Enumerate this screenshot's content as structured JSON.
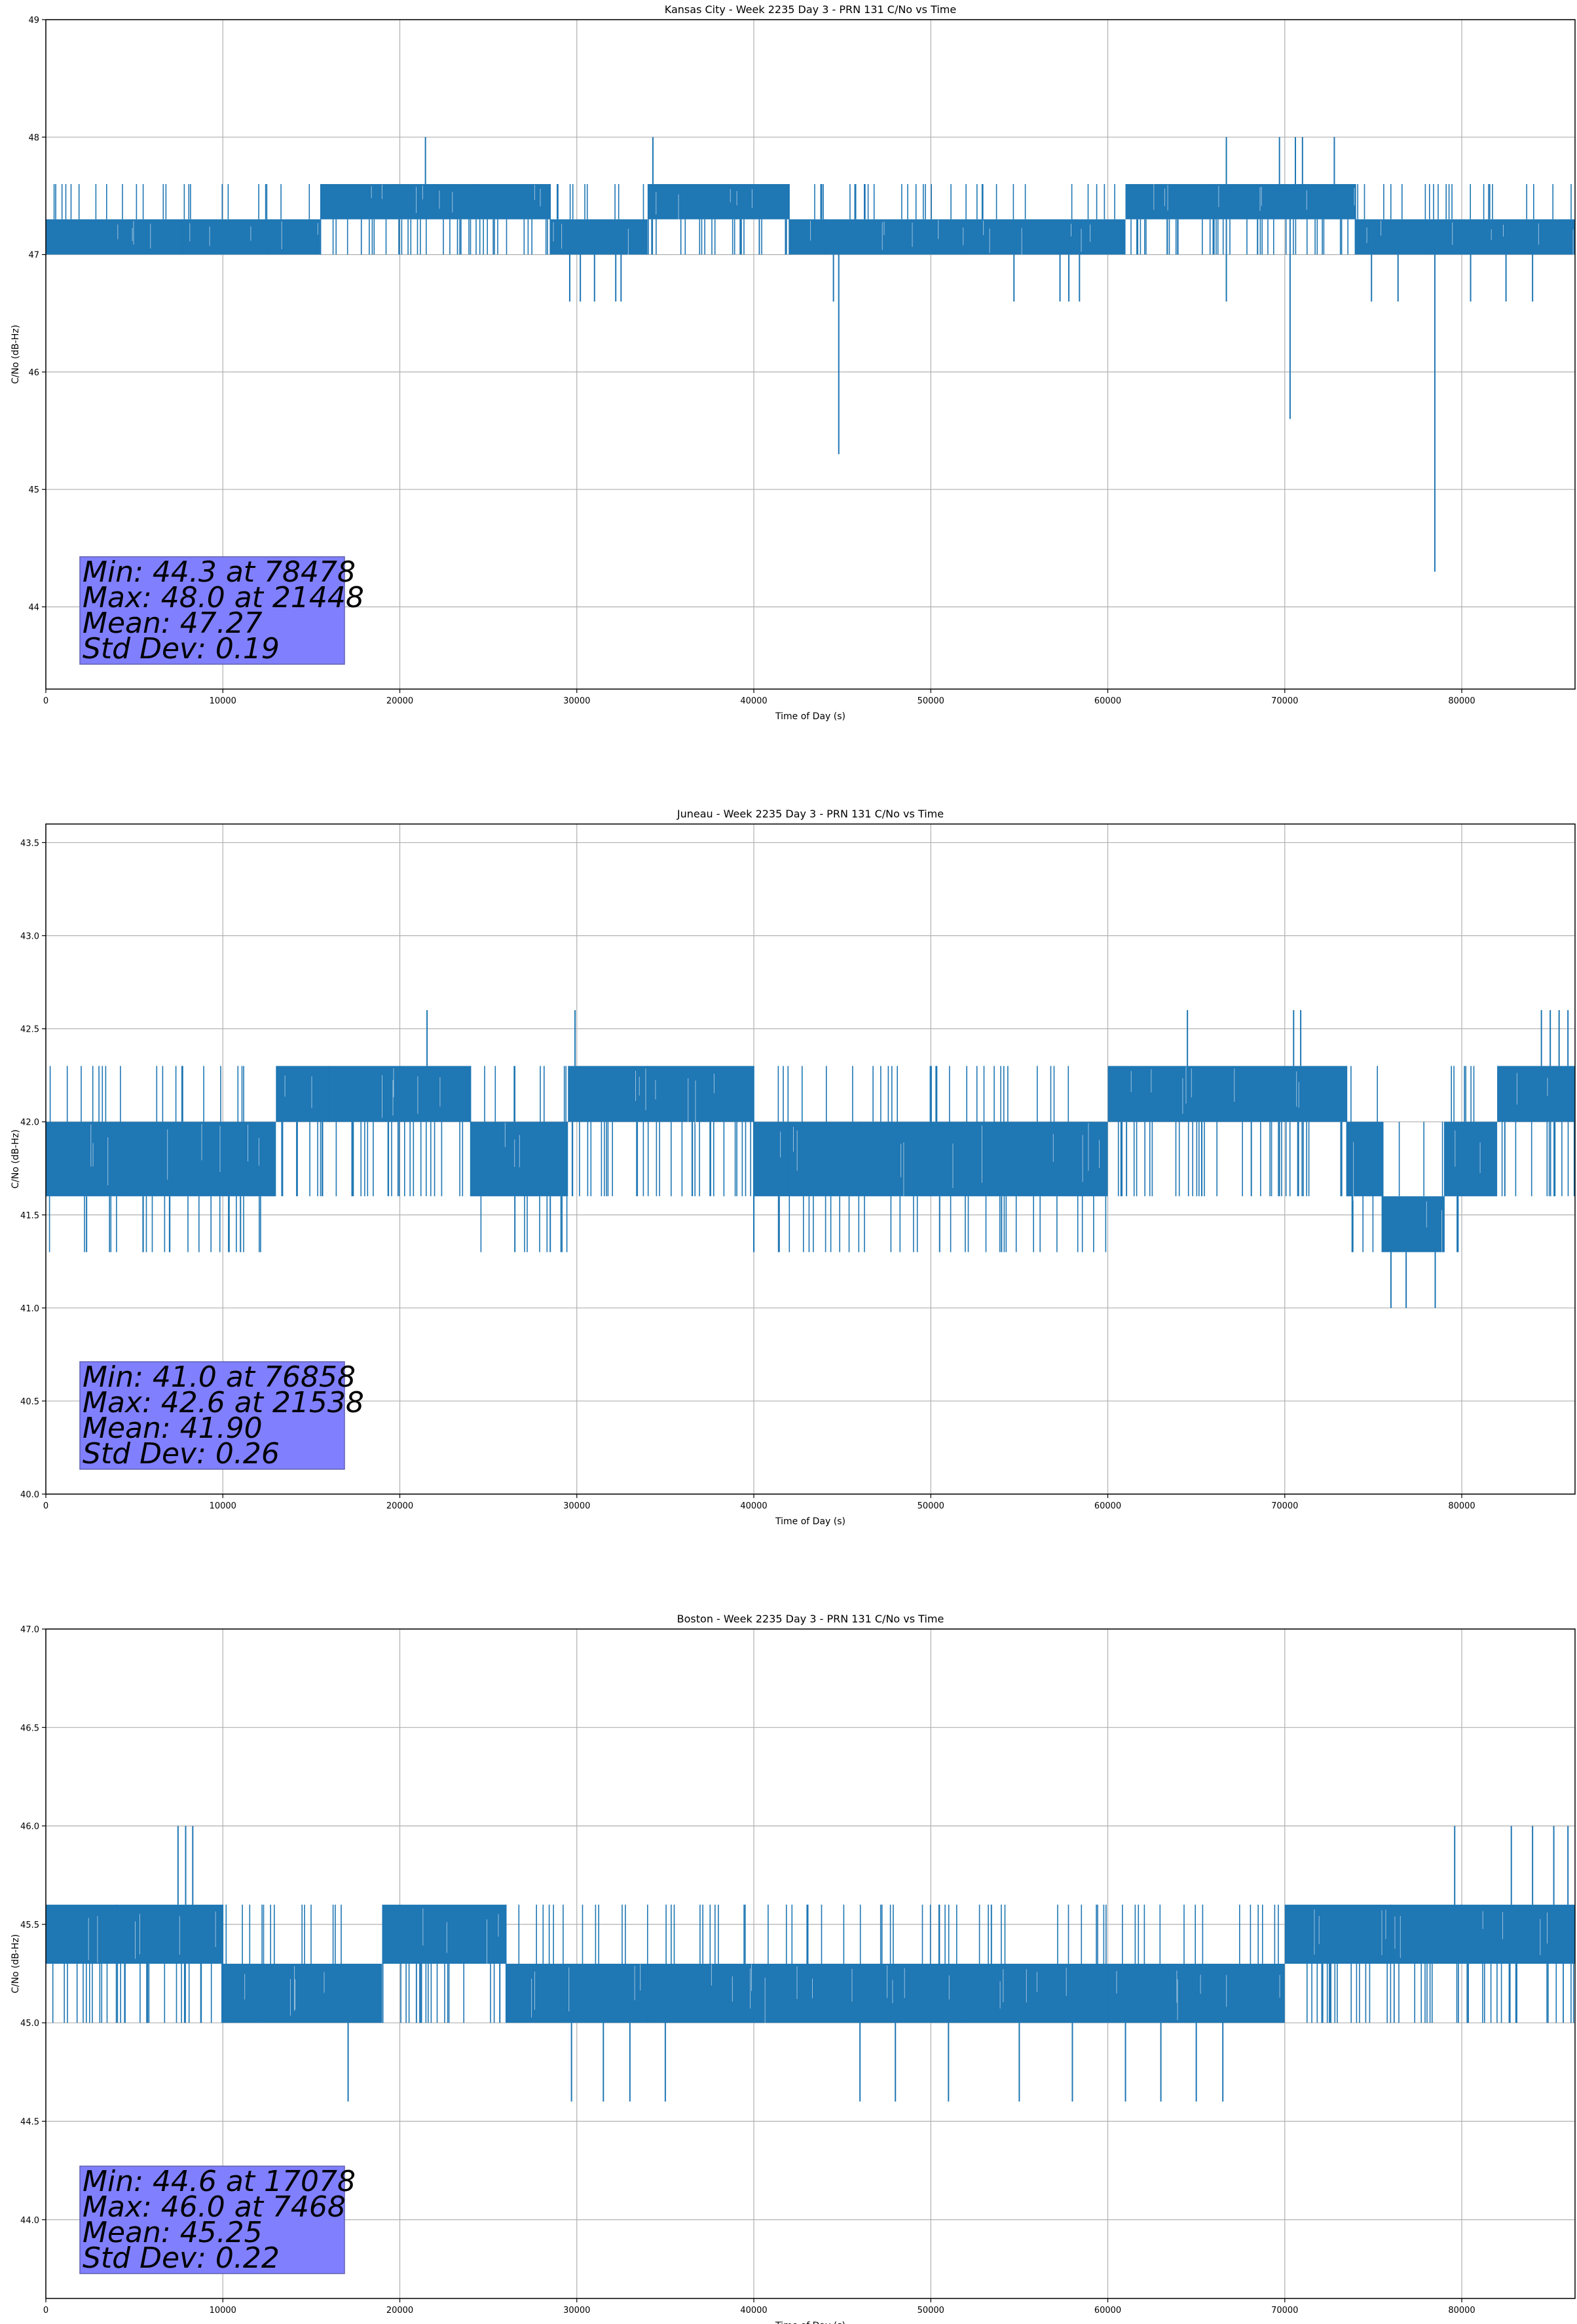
{
  "colors": {
    "line": "#1f77b4",
    "grid": "#b0b0b0",
    "stats_box_fill": "#8080ff",
    "stats_box_stroke": "#6060b0"
  },
  "chart_data": [
    {
      "type": "line",
      "title": "Kansas City - Week 2235 Day 3 - PRN 131 C/No vs Time",
      "xlabel": "Time of Day (s)",
      "ylabel": "C/No (dB-Hz)",
      "xlim": [
        0,
        86400
      ],
      "ylim": [
        43.3,
        49.0
      ],
      "xticks": [
        0,
        10000,
        20000,
        30000,
        40000,
        50000,
        60000,
        70000,
        80000
      ],
      "xtick_labels": [
        "0",
        "10000",
        "20000",
        "30000",
        "40000",
        "50000",
        "60000",
        "70000",
        "80000"
      ],
      "yticks": [
        44,
        45,
        46,
        47,
        48,
        49
      ],
      "ytick_labels": [
        "44",
        "45",
        "46",
        "47",
        "48",
        "49"
      ],
      "grid": true,
      "stats": [
        "Min: 44.3 at 78478",
        "Max: 48.0 at 21448",
        "Mean: 47.27",
        "Std Dev: 0.19"
      ],
      "series": [
        {
          "band_levels": [
            47.0,
            47.3,
            47.6
          ],
          "segments": [
            [
              0,
              7700,
              0
            ],
            [
              7700,
              12500,
              0
            ],
            [
              12500,
              15500,
              0
            ],
            [
              15500,
              21500,
              1
            ],
            [
              21500,
              24500,
              1
            ],
            [
              24500,
              28500,
              1
            ],
            [
              28500,
              32500,
              0
            ],
            [
              32500,
              34000,
              0
            ],
            [
              34000,
              39000,
              1
            ],
            [
              39000,
              42000,
              1
            ],
            [
              42000,
              44000,
              0
            ],
            [
              44000,
              52000,
              0
            ],
            [
              52000,
              58000,
              0
            ],
            [
              58000,
              61000,
              0
            ],
            [
              61000,
              66000,
              1
            ],
            [
              66000,
              71000,
              1
            ],
            [
              71000,
              74000,
              1
            ],
            [
              74000,
              78000,
              0
            ],
            [
              78000,
              86400,
              0
            ]
          ],
          "spikes_up": [
            [
              21448,
              48.0
            ],
            [
              34300,
              48.0
            ],
            [
              66700,
              48.0
            ],
            [
              69700,
              48.0
            ],
            [
              70600,
              48.0
            ],
            [
              71000,
              48.0
            ],
            [
              72800,
              48.0
            ]
          ],
          "spikes_down": [
            [
              2200,
              47.0
            ],
            [
              29600,
              46.6
            ],
            [
              30200,
              46.6
            ],
            [
              31000,
              46.6
            ],
            [
              32200,
              46.6
            ],
            [
              32500,
              46.6
            ],
            [
              44500,
              46.6
            ],
            [
              44800,
              45.3
            ],
            [
              54700,
              46.6
            ],
            [
              57300,
              46.6
            ],
            [
              57800,
              46.6
            ],
            [
              58400,
              46.6
            ],
            [
              66700,
              46.6
            ],
            [
              70300,
              45.6
            ],
            [
              74900,
              46.6
            ],
            [
              76400,
              46.6
            ],
            [
              78478,
              44.3
            ],
            [
              80500,
              46.6
            ],
            [
              82500,
              46.6
            ],
            [
              84000,
              46.6
            ]
          ]
        }
      ]
    },
    {
      "type": "line",
      "title": "Juneau - Week 2235 Day 3 - PRN 131 C/No vs Time",
      "xlabel": "Time of Day (s)",
      "ylabel": "C/No (dB-Hz)",
      "xlim": [
        0,
        86400
      ],
      "ylim": [
        40.0,
        43.6
      ],
      "xticks": [
        0,
        10000,
        20000,
        30000,
        40000,
        50000,
        60000,
        70000,
        80000
      ],
      "xtick_labels": [
        "0",
        "10000",
        "20000",
        "30000",
        "40000",
        "50000",
        "60000",
        "70000",
        "80000"
      ],
      "yticks": [
        40.0,
        40.5,
        41.0,
        41.5,
        42.0,
        42.5,
        43.0,
        43.5
      ],
      "ytick_labels": [
        "40.0",
        "40.5",
        "41.0",
        "41.5",
        "42.0",
        "42.5",
        "43.0",
        "43.5"
      ],
      "grid": true,
      "stats": [
        "Min: 41.0 at 76858",
        "Max: 42.6 at 21538",
        "Mean: 41.90",
        "Std Dev: 0.26"
      ],
      "series": [
        {
          "band_levels": [
            41.3,
            41.6,
            42.0,
            42.3
          ],
          "segments": [
            [
              0,
              4500,
              1
            ],
            [
              4500,
              10000,
              1
            ],
            [
              10000,
              13000,
              1
            ],
            [
              13000,
              16000,
              2
            ],
            [
              16000,
              24000,
              2
            ],
            [
              24000,
              29500,
              1
            ],
            [
              29500,
              34000,
              2
            ],
            [
              34000,
              40000,
              2
            ],
            [
              40000,
              42000,
              1
            ],
            [
              42000,
              46000,
              1
            ],
            [
              46000,
              50000,
              1
            ],
            [
              50000,
              52000,
              1
            ],
            [
              52000,
              60000,
              1
            ],
            [
              60000,
              64000,
              2
            ],
            [
              64000,
              70000,
              2
            ],
            [
              70000,
              73500,
              2
            ],
            [
              73500,
              75500,
              1
            ],
            [
              75500,
              79000,
              0
            ],
            [
              79000,
              82000,
              1
            ],
            [
              82000,
              86400,
              2
            ]
          ],
          "spikes_up": [
            [
              21538,
              42.6
            ],
            [
              29900,
              42.6
            ],
            [
              64500,
              42.6
            ],
            [
              70500,
              42.6
            ],
            [
              70900,
              42.6
            ],
            [
              84500,
              42.6
            ],
            [
              85000,
              42.6
            ],
            [
              85500,
              42.6
            ],
            [
              86000,
              42.6
            ]
          ],
          "spikes_down": [
            [
              2300,
              41.3
            ],
            [
              5500,
              41.3
            ],
            [
              7000,
              41.3
            ],
            [
              11000,
              41.3
            ],
            [
              26500,
              41.3
            ],
            [
              28500,
              41.3
            ],
            [
              40000,
              41.3
            ],
            [
              50500,
              41.3
            ],
            [
              54000,
              41.3
            ],
            [
              76000,
              41.0
            ],
            [
              76858,
              41.0
            ],
            [
              78500,
              41.0
            ]
          ]
        }
      ]
    },
    {
      "type": "line",
      "title": "Boston - Week 2235 Day 3 - PRN 131 C/No vs Time",
      "xlabel": "Time of Day (s)",
      "ylabel": "C/No (dB-Hz)",
      "xlim": [
        0,
        86400
      ],
      "ylim": [
        43.6,
        47.0
      ],
      "xticks": [
        0,
        10000,
        20000,
        30000,
        40000,
        50000,
        60000,
        70000,
        80000
      ],
      "xtick_labels": [
        "0",
        "10000",
        "20000",
        "30000",
        "40000",
        "50000",
        "60000",
        "70000",
        "80000"
      ],
      "yticks": [
        44.0,
        44.5,
        45.0,
        45.5,
        46.0,
        46.5,
        47.0
      ],
      "ytick_labels": [
        "44.0",
        "44.5",
        "45.0",
        "45.5",
        "46.0",
        "46.5",
        "47.0"
      ],
      "grid": true,
      "stats": [
        "Min: 44.6 at 17078",
        "Max: 46.0 at 7468",
        "Mean: 45.25",
        "Std Dev: 0.22"
      ],
      "series": [
        {
          "band_levels": [
            45.0,
            45.3,
            45.6
          ],
          "segments": [
            [
              0,
              4000,
              1
            ],
            [
              4000,
              10000,
              1
            ],
            [
              10000,
              12000,
              0
            ],
            [
              12000,
              19000,
              0
            ],
            [
              19000,
              26000,
              1
            ],
            [
              26000,
              29500,
              0
            ],
            [
              29500,
              34000,
              0
            ],
            [
              34000,
              40000,
              0
            ],
            [
              40000,
              46000,
              0
            ],
            [
              46000,
              52000,
              0
            ],
            [
              52000,
              60000,
              0
            ],
            [
              60000,
              66500,
              0
            ],
            [
              66500,
              70000,
              0
            ],
            [
              70000,
              76000,
              1
            ],
            [
              76000,
              80000,
              1
            ],
            [
              80000,
              86400,
              1
            ]
          ],
          "spikes_up": [
            [
              7468,
              46.0
            ],
            [
              7900,
              46.0
            ],
            [
              8300,
              46.0
            ],
            [
              79600,
              46.0
            ],
            [
              82800,
              46.0
            ],
            [
              84000,
              46.0
            ],
            [
              85200,
              46.0
            ],
            [
              86000,
              46.0
            ]
          ],
          "spikes_down": [
            [
              17078,
              44.6
            ],
            [
              29700,
              44.6
            ],
            [
              31500,
              44.6
            ],
            [
              33000,
              44.6
            ],
            [
              35000,
              44.6
            ],
            [
              46000,
              44.6
            ],
            [
              48000,
              44.6
            ],
            [
              51000,
              44.6
            ],
            [
              55000,
              44.6
            ],
            [
              58000,
              44.6
            ],
            [
              61000,
              44.6
            ],
            [
              63000,
              44.6
            ],
            [
              65000,
              44.6
            ],
            [
              66500,
              44.6
            ]
          ]
        }
      ]
    }
  ]
}
